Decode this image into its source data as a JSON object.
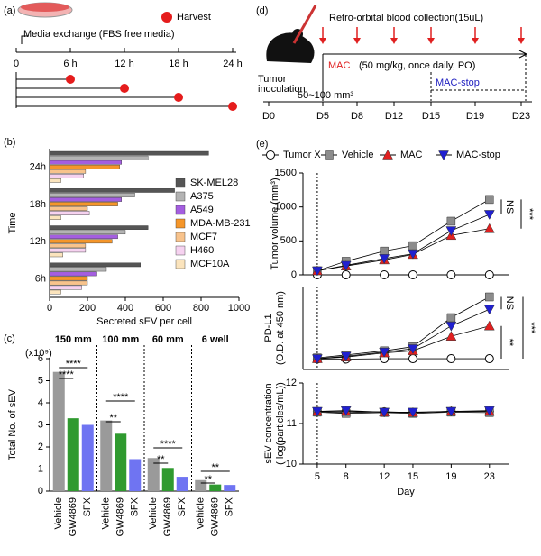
{
  "panel_labels": [
    "(a)",
    "(b)",
    "(c)",
    "(d)",
    "(e)"
  ],
  "panel_a": {
    "harvest": "Harvest",
    "media_exchange": "Media exchange (FBS free media)",
    "timepoints": [
      "0",
      "6 h",
      "12 h",
      "18 h",
      "24 h"
    ]
  },
  "panel_d": {
    "collection": "Retro-orbital blood collection(15uL)",
    "mac_label": "MAC",
    "mac_dose": "(50 mg/kg, once daily, PO)",
    "mac_stop": "MAC-stop",
    "inoculation": [
      "Tumor",
      "inoculation"
    ],
    "tumor_size": "50~100 mm³",
    "days": [
      "D0",
      "D5",
      "D8",
      "D12",
      "D15",
      "D19",
      "D23"
    ]
  },
  "chart_data": [
    {
      "type": "hbar",
      "y_label": "Time",
      "x_label": "Secreted sEV per cell",
      "categories": [
        "24h",
        "18h",
        "12h",
        "6h"
      ],
      "xlim": [
        0,
        1000
      ],
      "xticks": [
        0,
        200,
        400,
        600,
        800,
        1000
      ],
      "series": [
        {
          "name": "SK-MEL28",
          "color": "#555555",
          "values": [
            840,
            660,
            520,
            480
          ]
        },
        {
          "name": "A375",
          "color": "#b3b3b3",
          "values": [
            520,
            450,
            400,
            300
          ]
        },
        {
          "name": "A549",
          "color": "#a45ee0",
          "values": [
            380,
            380,
            360,
            250
          ]
        },
        {
          "name": "MDA-MB-231",
          "color": "#f5962a",
          "values": [
            370,
            360,
            330,
            200
          ]
        },
        {
          "name": "MCF7",
          "color": "#f8c38c",
          "values": [
            190,
            200,
            190,
            200
          ]
        },
        {
          "name": "H460",
          "color": "#f6d2f0",
          "values": [
            180,
            210,
            190,
            170
          ]
        },
        {
          "name": "MCF10A",
          "color": "#fbe4bd",
          "values": [
            60,
            60,
            70,
            60
          ]
        }
      ]
    },
    {
      "type": "bar",
      "scale_label": "(x10⁹)",
      "y_label": "Total No. of sEV",
      "categories": [
        "150 mm",
        "100 mm",
        "60 mm",
        "6 well"
      ],
      "ylim": [
        0,
        6
      ],
      "yticks": [
        0,
        1,
        2,
        3,
        4,
        5,
        6
      ],
      "series": [
        {
          "name": "Vehicle",
          "color": "#9a9a9a",
          "values": [
            5.4,
            3.2,
            1.5,
            0.5
          ]
        },
        {
          "name": "GW4869",
          "color": "#2f9a2f",
          "values": [
            3.3,
            2.6,
            1.05,
            0.3
          ]
        },
        {
          "name": "SFX",
          "color": "#6f74f2",
          "values": [
            3.0,
            1.45,
            0.65,
            0.28
          ]
        }
      ],
      "annotations": [
        "****",
        "****",
        "****",
        "**",
        "****",
        "**",
        "**",
        "**"
      ]
    },
    {
      "type": "line",
      "y_label": "Tumor volume (mm³)",
      "x": [
        5,
        8,
        12,
        15,
        19,
        23
      ],
      "xlim": [
        3.5,
        25
      ],
      "ylim": [
        0,
        1500
      ],
      "yticks": [
        0,
        500,
        1000,
        1500
      ],
      "series": [
        {
          "name": "Tumor X",
          "color": "#000000",
          "marker": "circle",
          "values": [
            0,
            0,
            0,
            0,
            0,
            0
          ]
        },
        {
          "name": "Vehicle",
          "color": "#8c8c8c",
          "marker": "square",
          "values": [
            60,
            200,
            350,
            430,
            790,
            1110
          ]
        },
        {
          "name": "MAC",
          "color": "#e02020",
          "marker": "triangle-up",
          "values": [
            60,
            130,
            220,
            300,
            580,
            680
          ]
        },
        {
          "name": "MAC-stop",
          "color": "#2020d0",
          "marker": "triangle-down",
          "values": [
            60,
            140,
            240,
            310,
            650,
            890
          ]
        }
      ],
      "annotations": [
        "NS",
        "***"
      ]
    },
    {
      "type": "line",
      "y_label": [
        "PD-L1",
        "(O.D. at 450 nm)"
      ],
      "x": [
        5,
        8,
        12,
        15,
        19,
        23
      ],
      "xlim": [
        3.5,
        25
      ],
      "ylim": [
        0.04,
        0.24
      ],
      "series": [
        {
          "color": "#000000",
          "marker": "circle",
          "values": [
            0.065,
            0.065,
            0.066,
            0.066,
            0.066,
            0.066
          ]
        },
        {
          "color": "#8c8c8c",
          "marker": "square",
          "values": [
            0.068,
            0.075,
            0.085,
            0.095,
            0.165,
            0.215
          ]
        },
        {
          "color": "#e02020",
          "marker": "triangle-up",
          "values": [
            0.066,
            0.07,
            0.08,
            0.085,
            0.12,
            0.145
          ]
        },
        {
          "color": "#2020d0",
          "marker": "triangle-down",
          "values": [
            0.066,
            0.072,
            0.082,
            0.09,
            0.145,
            0.185
          ]
        }
      ],
      "annotations": [
        "NS",
        "**",
        "***"
      ]
    },
    {
      "type": "line",
      "y_label": [
        "sEV concentration",
        "( log(particles/mL))"
      ],
      "x_label": "Day",
      "x": [
        5,
        8,
        12,
        15,
        19,
        23
      ],
      "xlim": [
        3.5,
        25
      ],
      "xticks": [
        5,
        8,
        12,
        15,
        19,
        23
      ],
      "ylim": [
        10,
        12
      ],
      "yticks": [
        10,
        11,
        12
      ],
      "series": [
        {
          "color": "#000000",
          "marker": "circle",
          "values": [
            11.3,
            11.27,
            11.29,
            11.27,
            11.3,
            11.3
          ]
        },
        {
          "color": "#8c8c8c",
          "marker": "square",
          "values": [
            11.28,
            11.25,
            11.27,
            11.25,
            11.28,
            11.27
          ]
        },
        {
          "color": "#e02020",
          "marker": "triangle-up",
          "values": [
            11.3,
            11.3,
            11.28,
            11.27,
            11.3,
            11.3
          ]
        },
        {
          "color": "#2020d0",
          "marker": "triangle-down",
          "values": [
            11.3,
            11.32,
            11.28,
            11.28,
            11.3,
            11.32
          ]
        }
      ]
    }
  ]
}
